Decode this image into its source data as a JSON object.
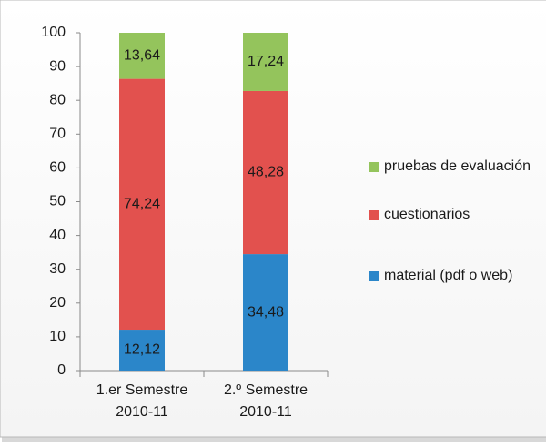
{
  "chart_data": {
    "type": "stacked_bar",
    "categories": [
      "1.er Semestre 2010-11",
      "2.º Semestre 2010-11"
    ],
    "series": [
      {
        "name": "material (pdf o web)",
        "color": "#2b86c9",
        "values": [
          12.12,
          34.48
        ],
        "value_labels": [
          "12,12",
          "34,48"
        ]
      },
      {
        "name": "cuestionarios",
        "color": "#e2514e",
        "values": [
          74.24,
          48.28
        ],
        "value_labels": [
          "74,24",
          "48,28"
        ]
      },
      {
        "name": "pruebas de evaluación",
        "color": "#94c45c",
        "values": [
          13.64,
          17.24
        ],
        "value_labels": [
          "13,64",
          "17,24"
        ]
      }
    ],
    "ylim": [
      0,
      100
    ],
    "yticks": [
      0,
      10,
      20,
      30,
      40,
      50,
      60,
      70,
      80,
      90,
      100
    ],
    "legend": "right"
  }
}
